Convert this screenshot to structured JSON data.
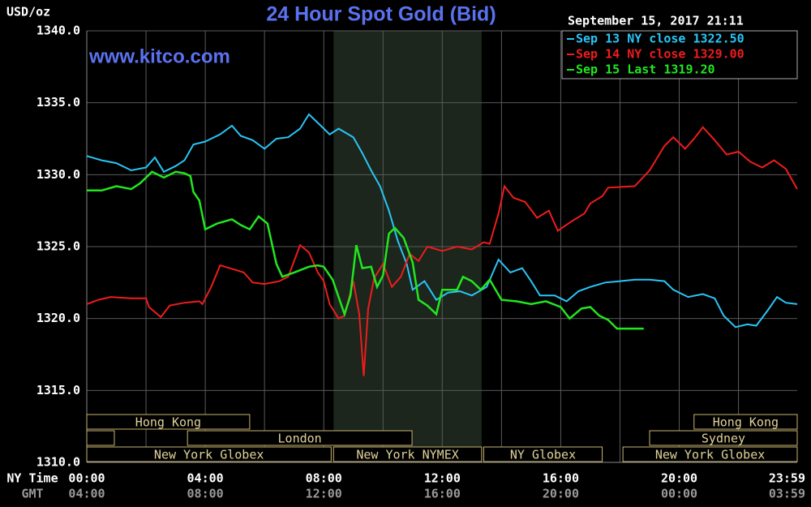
{
  "chart_data": {
    "type": "line",
    "title": "24 Hour Spot Gold (Bid)",
    "y_label": "USD/oz",
    "watermark": "www.kitco.com",
    "timestamp": "September 15, 2017 21:11",
    "x_row_label": "NY Time",
    "x2_row_label": "GMT",
    "xlim": [
      0,
      23.983
    ],
    "xticks": [
      {
        "value": 0,
        "label": "00:00"
      },
      {
        "value": 4,
        "label": "04:00"
      },
      {
        "value": 8,
        "label": "08:00"
      },
      {
        "value": 12,
        "label": "12:00"
      },
      {
        "value": 16,
        "label": "16:00"
      },
      {
        "value": 20,
        "label": "20:00"
      },
      {
        "value": 23.983,
        "label": "23:59"
      }
    ],
    "x2ticks": [
      {
        "value": 0,
        "label": "04:00"
      },
      {
        "value": 4,
        "label": "08:00"
      },
      {
        "value": 8,
        "label": "12:00"
      },
      {
        "value": 12,
        "label": "16:00"
      },
      {
        "value": 16,
        "label": "20:00"
      },
      {
        "value": 20,
        "label": "00:00"
      },
      {
        "value": 23.983,
        "label": "03:59"
      }
    ],
    "xgrid": [
      2,
      4,
      6,
      8,
      10,
      12,
      14,
      16,
      18,
      20,
      22
    ],
    "ylim": [
      1310,
      1340
    ],
    "yticks": [
      {
        "value": 1310,
        "label": "1310.0"
      },
      {
        "value": 1315,
        "label": "1315.0"
      },
      {
        "value": 1320,
        "label": "1320.0"
      },
      {
        "value": 1325,
        "label": "1325.0"
      },
      {
        "value": 1330,
        "label": "1330.0"
      },
      {
        "value": 1335,
        "label": "1335.0"
      },
      {
        "value": 1340,
        "label": "1340.0"
      }
    ],
    "grid": true,
    "legend": "top-right",
    "shaded": [
      8.33,
      13.33
    ],
    "sessions": [
      {
        "label": "Hong Kong",
        "row": 0,
        "start": 0,
        "end": 5.5
      },
      {
        "label": "Hong Kong",
        "row": 0,
        "start": 20.5,
        "end": 23.983
      },
      {
        "row": 1,
        "start": 0,
        "end": 0.93
      },
      {
        "label": "London",
        "row": 1,
        "start": 3.4,
        "end": 10.98
      },
      {
        "label": "Sydney",
        "row": 1,
        "start": 19.0,
        "end": 23.983
      },
      {
        "label": "New York Globex",
        "row": 2,
        "start": 0,
        "end": 8.25
      },
      {
        "label": "New York NYMEX",
        "row": 2,
        "start": 8.33,
        "end": 13.33
      },
      {
        "label": "NY Globex",
        "row": 2,
        "start": 13.4,
        "end": 17.4
      },
      {
        "label": "New York Globex",
        "row": 2,
        "start": 18.1,
        "end": 23.983
      }
    ],
    "series": [
      {
        "name": "Sep 13 NY close 1322.50",
        "color": "#29c5f6",
        "x": [
          0,
          0.5,
          1,
          1.5,
          2,
          2.3,
          2.6,
          3,
          3.3,
          3.6,
          4,
          4.5,
          4.9,
          5.2,
          5.6,
          6,
          6.4,
          6.8,
          7.2,
          7.5,
          7.9,
          8.2,
          8.5,
          9,
          9.3,
          9.6,
          9.9,
          10.2,
          10.5,
          10.8,
          11,
          11.4,
          11.8,
          12.2,
          12.6,
          13,
          13.5,
          13.9,
          14.3,
          14.7,
          15,
          15.3,
          15.8,
          16.2,
          16.6,
          17,
          17.5,
          18,
          18.5,
          19,
          19.5,
          19.8,
          20.3,
          20.8,
          21.2,
          21.5,
          21.9,
          22.3,
          22.6,
          23,
          23.3,
          23.6,
          23.983
        ],
        "values": [
          1331.3,
          1331.0,
          1330.8,
          1330.3,
          1330.5,
          1331.2,
          1330.2,
          1330.6,
          1331.0,
          1332.1,
          1332.3,
          1332.8,
          1333.4,
          1332.7,
          1332.4,
          1331.8,
          1332.5,
          1332.6,
          1333.2,
          1334.2,
          1333.4,
          1332.8,
          1333.2,
          1332.6,
          1331.5,
          1330.3,
          1329.2,
          1327.5,
          1325.4,
          1323.8,
          1322.0,
          1322.6,
          1321.3,
          1321.8,
          1321.9,
          1321.6,
          1322.2,
          1324.1,
          1323.2,
          1323.5,
          1322.6,
          1321.6,
          1321.6,
          1321.2,
          1321.9,
          1322.2,
          1322.5,
          1322.6,
          1322.7,
          1322.7,
          1322.6,
          1322.0,
          1321.5,
          1321.7,
          1321.4,
          1320.2,
          1319.4,
          1319.6,
          1319.5,
          1320.6,
          1321.5,
          1321.1,
          1321.0
        ]
      },
      {
        "name": "Sep 14 NY close 1329.00",
        "color": "#ee1c1c",
        "x": [
          0,
          0.4,
          0.8,
          1.5,
          2,
          2.1,
          2.5,
          2.8,
          3.3,
          3.8,
          3.9,
          4.2,
          4.5,
          5,
          5.3,
          5.6,
          6,
          6.5,
          6.8,
          7.2,
          7.5,
          7.8,
          8,
          8.2,
          8.5,
          8.7,
          9,
          9.2,
          9.35,
          9.5,
          9.7,
          10,
          10.3,
          10.6,
          10.9,
          11.2,
          11.5,
          12,
          12.5,
          13,
          13.4,
          13.6,
          13.9,
          14.1,
          14.4,
          14.8,
          15.2,
          15.6,
          15.9,
          16.4,
          16.8,
          17,
          17.4,
          17.6,
          18.5,
          19,
          19.5,
          19.8,
          20.2,
          20.5,
          20.8,
          21.2,
          21.6,
          22,
          22.4,
          22.8,
          23.2,
          23.6,
          23.983
        ],
        "values": [
          1321.0,
          1321.3,
          1321.5,
          1321.4,
          1321.4,
          1320.8,
          1320.1,
          1320.9,
          1321.1,
          1321.2,
          1321.0,
          1322.2,
          1323.7,
          1323.4,
          1323.2,
          1322.5,
          1322.4,
          1322.6,
          1322.9,
          1325.1,
          1324.6,
          1323.2,
          1322.6,
          1321.0,
          1320.0,
          1320.2,
          1322.6,
          1320.3,
          1316.0,
          1320.7,
          1322.8,
          1323.8,
          1322.2,
          1322.9,
          1324.5,
          1324.0,
          1325.0,
          1324.7,
          1325.0,
          1324.8,
          1325.3,
          1325.2,
          1327.3,
          1329.2,
          1328.4,
          1328.1,
          1327.0,
          1327.5,
          1326.1,
          1326.8,
          1327.3,
          1328.0,
          1328.5,
          1329.1,
          1329.2,
          1330.3,
          1332.0,
          1332.6,
          1331.8,
          1332.5,
          1333.3,
          1332.4,
          1331.4,
          1331.6,
          1330.9,
          1330.5,
          1331.0,
          1330.4,
          1329.0
        ]
      },
      {
        "name": "Sep 15 Last 1319.20",
        "color": "#22e61f",
        "x": [
          0,
          0.5,
          1,
          1.5,
          1.8,
          2.2,
          2.6,
          3,
          3.3,
          3.5,
          3.6,
          3.8,
          4,
          4.4,
          4.9,
          5.2,
          5.5,
          5.8,
          6.1,
          6.4,
          6.6,
          7,
          7.5,
          7.8,
          8,
          8.3,
          8.5,
          8.7,
          8.9,
          9.1,
          9.3,
          9.6,
          9.8,
          10,
          10.2,
          10.4,
          10.7,
          11,
          11.2,
          11.5,
          11.8,
          12,
          12.5,
          12.7,
          13,
          13.3,
          13.6,
          14,
          14.5,
          15,
          15.5,
          16,
          16.3,
          16.7,
          17,
          17.3,
          17.6,
          17.9,
          18.4,
          18.8
        ],
        "values": [
          1328.9,
          1328.9,
          1329.2,
          1329.0,
          1329.4,
          1330.2,
          1329.8,
          1330.2,
          1330.1,
          1329.9,
          1328.8,
          1328.2,
          1326.2,
          1326.6,
          1326.9,
          1326.5,
          1326.2,
          1327.1,
          1326.6,
          1323.8,
          1322.9,
          1323.2,
          1323.6,
          1323.7,
          1323.6,
          1322.7,
          1321.5,
          1320.3,
          1321.6,
          1325.1,
          1323.5,
          1323.6,
          1322.2,
          1323.0,
          1325.9,
          1326.3,
          1325.6,
          1323.9,
          1321.3,
          1320.9,
          1320.3,
          1322.0,
          1322.0,
          1322.9,
          1322.6,
          1322.0,
          1322.7,
          1321.3,
          1321.2,
          1321.0,
          1321.2,
          1320.8,
          1320.0,
          1320.7,
          1320.8,
          1320.2,
          1319.9,
          1319.3,
          1319.3,
          1319.3
        ]
      }
    ]
  }
}
